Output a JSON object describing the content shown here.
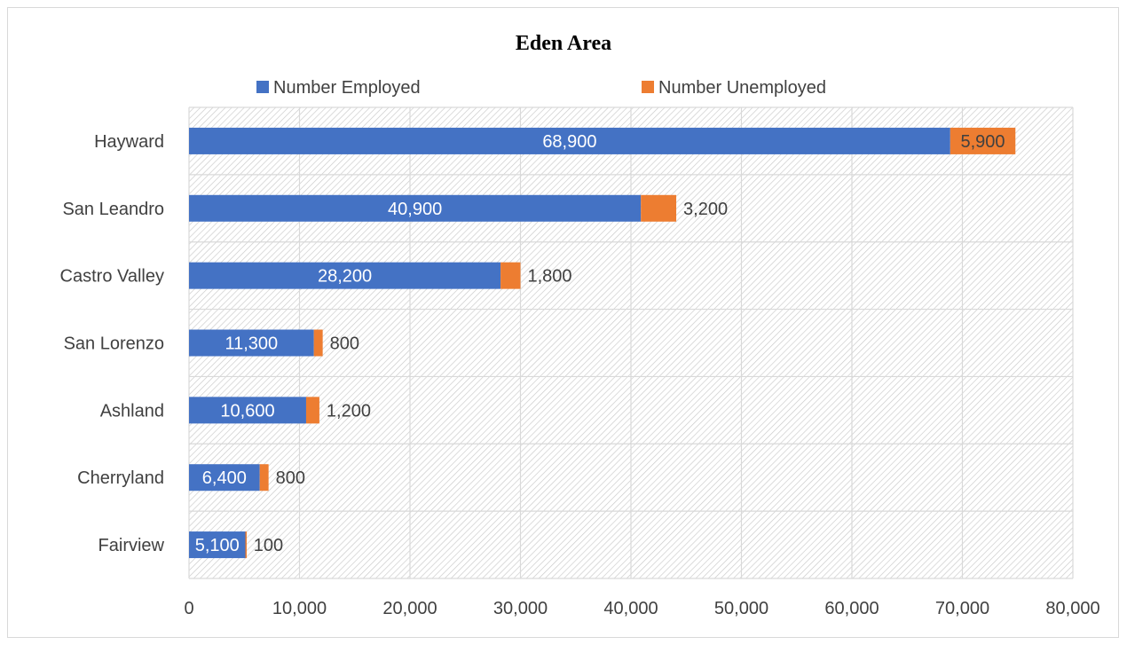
{
  "chart_data": {
    "type": "bar",
    "orientation": "horizontal",
    "stacked": true,
    "title": "Eden Area",
    "categories": [
      "Hayward",
      "San Leandro",
      "Castro Valley",
      "San Lorenzo",
      "Ashland",
      "Cherryland",
      "Fairview"
    ],
    "series": [
      {
        "name": "Number Employed",
        "color": "#4472C4",
        "values": [
          68900,
          40900,
          28200,
          11300,
          10600,
          6400,
          5100
        ],
        "labels": [
          "68,900",
          "40,900",
          "28,200",
          "11,300",
          "10,600",
          "6,400",
          "5,100"
        ]
      },
      {
        "name": "Number Unemployed",
        "color": "#ED7D31",
        "values": [
          5900,
          3200,
          1800,
          800,
          1200,
          800,
          100
        ],
        "labels": [
          "5,900",
          "3,200",
          "1,800",
          "800",
          "1,200",
          "800",
          "100"
        ]
      }
    ],
    "xlim": [
      0,
      80000
    ],
    "x_ticks": [
      0,
      10000,
      20000,
      30000,
      40000,
      50000,
      60000,
      70000,
      80000
    ],
    "x_tick_labels": [
      "0",
      "10,000",
      "20,000",
      "30,000",
      "40,000",
      "50,000",
      "60,000",
      "70,000",
      "80,000"
    ],
    "grid": true,
    "legend": "top"
  }
}
